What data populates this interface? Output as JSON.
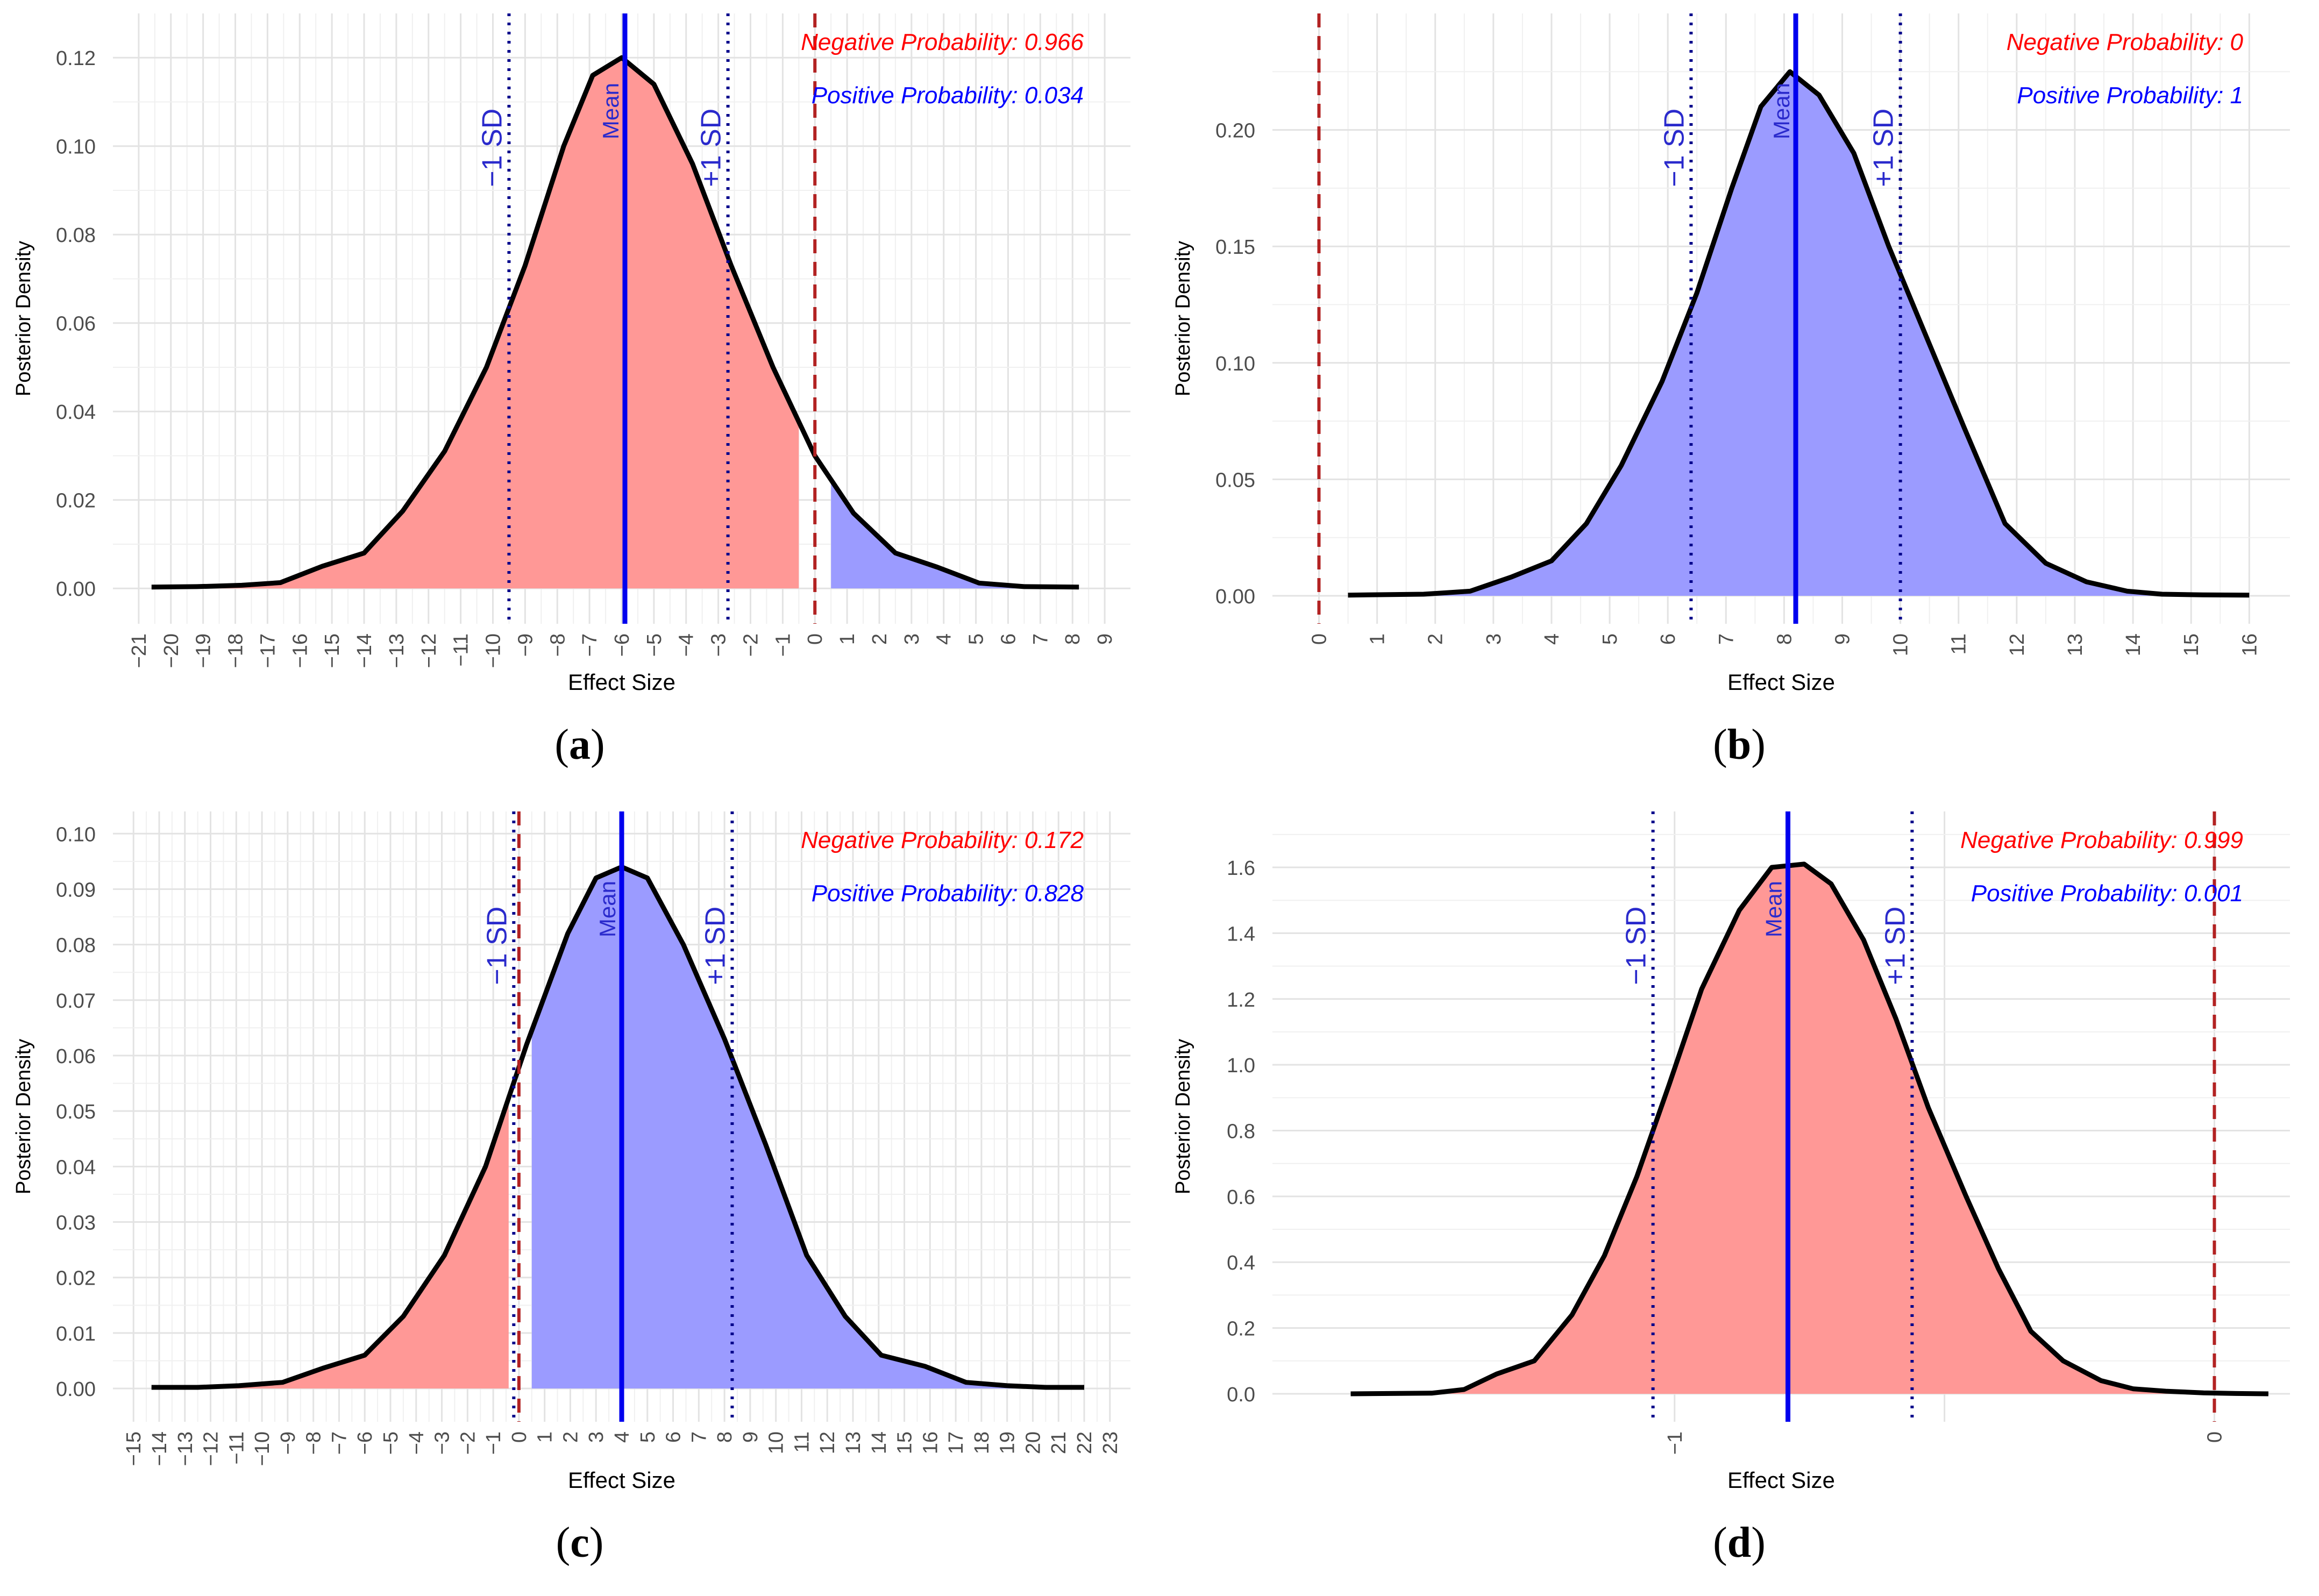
{
  "chart_data": [
    {
      "id": "a",
      "type": "area",
      "panel_label": "a",
      "xlabel": "Effect Size",
      "ylabel": "Posterior Density",
      "xlim": [
        -21.8,
        9.8
      ],
      "ylim": [
        -0.008,
        0.13
      ],
      "x_ticks": [
        "−21",
        "−20",
        "−19",
        "−18",
        "−17",
        "−16",
        "−15",
        "−14",
        "−13",
        "−12",
        "−11",
        "−10",
        "−9",
        "−8",
        "−7",
        "−6",
        "−5",
        "−4",
        "−3",
        "−2",
        "−1",
        "0",
        "1",
        "2",
        "3",
        "4",
        "5",
        "6",
        "7",
        "8",
        "9"
      ],
      "x_tick_values": [
        -21,
        -20,
        -19,
        -18,
        -17,
        -16,
        -15,
        -14,
        -13,
        -12,
        -11,
        -10,
        -9,
        -8,
        -7,
        -6,
        -5,
        -4,
        -3,
        -2,
        -1,
        0,
        1,
        2,
        3,
        4,
        5,
        6,
        7,
        8,
        9
      ],
      "y_ticks": [
        "0.00",
        "0.02",
        "0.04",
        "0.06",
        "0.08",
        "0.10",
        "0.12"
      ],
      "y_tick_values": [
        0,
        0.02,
        0.04,
        0.06,
        0.08,
        0.1,
        0.12
      ],
      "curve": {
        "x": [
          -20.6,
          -19.2,
          -17.8,
          -16.6,
          -15.3,
          -14.0,
          -12.8,
          -11.5,
          -10.2,
          -9.0,
          -7.8,
          -6.9,
          -6.0,
          -5.0,
          -3.8,
          -2.6,
          -1.3,
          0.0,
          1.2,
          2.5,
          3.8,
          5.1,
          6.5,
          8.2
        ],
        "y": [
          0.0003,
          0.0004,
          0.0007,
          0.0013,
          0.005,
          0.008,
          0.0175,
          0.031,
          0.05,
          0.073,
          0.1,
          0.116,
          0.12,
          0.114,
          0.096,
          0.073,
          0.05,
          0.03,
          0.017,
          0.008,
          0.0048,
          0.0012,
          0.0004,
          0.0003
        ]
      },
      "negative_fill_to": -0.5,
      "positive_fill_from": 0.5,
      "mean": -5.9,
      "sd_lower": -9.5,
      "sd_upper": -2.7,
      "zero_line": 0,
      "mean_label": "Mean",
      "sd_lower_label": "−1 SD",
      "sd_upper_label": "+1 SD",
      "negative_text": "Negative Probability: 0.966",
      "positive_text": "Positive Probability: 0.034"
    },
    {
      "id": "b",
      "type": "area",
      "panel_label": "b",
      "xlabel": "Effect Size",
      "ylabel": "Posterior Density",
      "xlim": [
        -0.8,
        16.7
      ],
      "ylim": [
        -0.012,
        0.25
      ],
      "x_ticks": [
        "0",
        "1",
        "2",
        "3",
        "4",
        "5",
        "6",
        "7",
        "8",
        "9",
        "10",
        "11",
        "12",
        "13",
        "14",
        "15",
        "16"
      ],
      "x_tick_values": [
        0,
        1,
        2,
        3,
        4,
        5,
        6,
        7,
        8,
        9,
        10,
        11,
        12,
        13,
        14,
        15,
        16
      ],
      "y_ticks": [
        "0.00",
        "0.05",
        "0.10",
        "0.15",
        "0.20"
      ],
      "y_tick_values": [
        0,
        0.05,
        0.1,
        0.15,
        0.2
      ],
      "curve": {
        "x": [
          0.5,
          1.8,
          2.6,
          3.3,
          4.0,
          4.6,
          5.2,
          5.9,
          6.5,
          7.1,
          7.6,
          8.1,
          8.6,
          9.2,
          9.8,
          10.5,
          11.1,
          11.8,
          12.5,
          13.2,
          13.9,
          14.5,
          15.2,
          16.0
        ],
        "y": [
          0.0003,
          0.0007,
          0.002,
          0.008,
          0.015,
          0.031,
          0.056,
          0.092,
          0.13,
          0.175,
          0.21,
          0.225,
          0.215,
          0.19,
          0.15,
          0.108,
          0.072,
          0.031,
          0.014,
          0.006,
          0.002,
          0.0007,
          0.0004,
          0.0003
        ]
      },
      "negative_fill_to": 0,
      "positive_fill_from": 0.5,
      "mean": 8.2,
      "sd_lower": 6.4,
      "sd_upper": 10.0,
      "zero_line": 0,
      "mean_label": "Mean",
      "sd_lower_label": "−1 SD",
      "sd_upper_label": "+1 SD",
      "negative_text": "Negative Probability: 0",
      "positive_text": "Positive Probability: 1"
    },
    {
      "id": "c",
      "type": "area",
      "panel_label": "c",
      "xlabel": "Effect Size",
      "ylabel": "Posterior Density",
      "xlim": [
        -15.8,
        23.8
      ],
      "ylim": [
        -0.006,
        0.104
      ],
      "x_ticks": [
        "−15",
        "−14",
        "−13",
        "−12",
        "−11",
        "−10",
        "−9",
        "−8",
        "−7",
        "−6",
        "−5",
        "−4",
        "−3",
        "−2",
        "−1",
        "0",
        "1",
        "2",
        "3",
        "4",
        "5",
        "6",
        "7",
        "8",
        "9",
        "10",
        "11",
        "12",
        "13",
        "14",
        "15",
        "16",
        "17",
        "18",
        "19",
        "20",
        "21",
        "22",
        "23"
      ],
      "x_tick_values": [
        -15,
        -14,
        -13,
        -12,
        -11,
        -10,
        -9,
        -8,
        -7,
        -6,
        -5,
        -4,
        -3,
        -2,
        -1,
        0,
        1,
        2,
        3,
        4,
        5,
        6,
        7,
        8,
        9,
        10,
        11,
        12,
        13,
        14,
        15,
        16,
        17,
        18,
        19,
        20,
        21,
        22,
        23
      ],
      "y_ticks": [
        "0.00",
        "0.01",
        "0.02",
        "0.03",
        "0.04",
        "0.05",
        "0.06",
        "0.07",
        "0.08",
        "0.09",
        "0.10"
      ],
      "y_tick_values": [
        0,
        0.01,
        0.02,
        0.03,
        0.04,
        0.05,
        0.06,
        0.07,
        0.08,
        0.09,
        0.1
      ],
      "curve": {
        "x": [
          -14.3,
          -12.5,
          -10.9,
          -9.2,
          -7.6,
          -6.0,
          -4.5,
          -2.9,
          -1.3,
          0.3,
          1.9,
          3.0,
          4.0,
          5.0,
          6.4,
          8.0,
          9.6,
          11.2,
          12.7,
          14.1,
          15.8,
          17.4,
          19.0,
          20.5,
          22.0
        ],
        "y": [
          0.0002,
          0.0002,
          0.0005,
          0.0011,
          0.0037,
          0.006,
          0.013,
          0.024,
          0.04,
          0.062,
          0.082,
          0.092,
          0.094,
          0.092,
          0.08,
          0.063,
          0.044,
          0.024,
          0.013,
          0.006,
          0.004,
          0.0011,
          0.0005,
          0.0002,
          0.0002
        ]
      },
      "negative_fill_to": -0.4,
      "positive_fill_from": 0.5,
      "mean": 4.0,
      "sd_lower": -0.2,
      "sd_upper": 8.3,
      "zero_line": 0,
      "mean_label": "Mean",
      "sd_lower_label": "−1 SD",
      "sd_upper_label": "+1 SD",
      "negative_text": "Negative Probability: 0.172",
      "positive_text": "Positive Probability: 0.828"
    },
    {
      "id": "d",
      "type": "area",
      "panel_label": "d",
      "xlabel": "Effect Size",
      "ylabel": "Posterior Density",
      "xlim": [
        -1.745,
        0.14
      ],
      "ylim": [
        -0.085,
        1.77
      ],
      "x_ticks": [
        "−1",
        "0"
      ],
      "x_tick_values": [
        -1,
        0
      ],
      "x_grid_extra": [
        -0.5
      ],
      "y_ticks": [
        "0.0",
        "0.2",
        "0.4",
        "0.6",
        "0.8",
        "1.0",
        "1.2",
        "1.4",
        "1.6"
      ],
      "y_tick_values": [
        0,
        0.2,
        0.4,
        0.6,
        0.8,
        1.0,
        1.2,
        1.4,
        1.6
      ],
      "curve": {
        "x": [
          -1.6,
          -1.45,
          -1.39,
          -1.33,
          -1.26,
          -1.19,
          -1.13,
          -1.07,
          -1.01,
          -0.95,
          -0.88,
          -0.82,
          -0.76,
          -0.71,
          -0.65,
          -0.59,
          -0.53,
          -0.46,
          -0.4,
          -0.34,
          -0.28,
          -0.21,
          -0.15,
          -0.09,
          -0.02,
          0.04,
          0.1
        ],
        "y": [
          0.0,
          0.002,
          0.013,
          0.06,
          0.1,
          0.24,
          0.42,
          0.66,
          0.94,
          1.23,
          1.47,
          1.6,
          1.61,
          1.55,
          1.38,
          1.14,
          0.87,
          0.6,
          0.38,
          0.19,
          0.1,
          0.04,
          0.015,
          0.008,
          0.003,
          0.001,
          0.0
        ]
      },
      "negative_fill_to": 0.0,
      "positive_fill_from": 1.0,
      "mean": -0.79,
      "sd_lower": -1.04,
      "sd_upper": -0.56,
      "zero_line": 0,
      "mean_label": "Mean",
      "sd_lower_label": "−1 SD",
      "sd_upper_label": "+1 SD",
      "negative_text": "Negative Probability: 0.999",
      "positive_text": "Positive Probability: 0.001"
    }
  ],
  "colors": {
    "negative_fill": "#ff9896",
    "positive_fill": "#9b9bff",
    "curve": "#000000",
    "mean_line": "#0000ee",
    "sd_line": "#00008b",
    "zero_line": "#b22222",
    "neg_text": "#ff0000",
    "pos_text": "#0000ff",
    "label_text": "#2a2acc"
  }
}
